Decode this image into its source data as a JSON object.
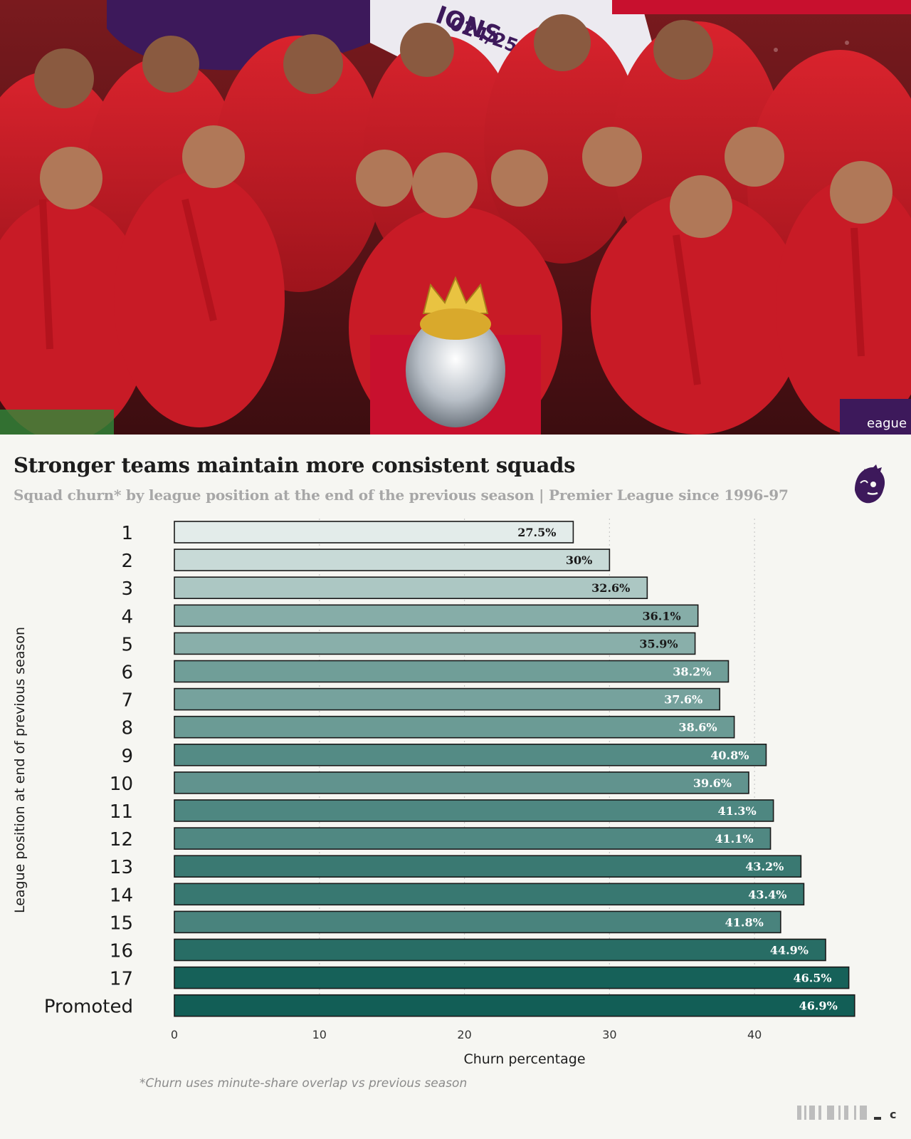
{
  "photo": {
    "banner_text_1": "IONS",
    "banner_text_2": "024/25",
    "board_text": "eague"
  },
  "title": "Stronger teams maintain more consistent squads",
  "subtitle": "Squad churn* by league position at the end of the previous season | Premier League since 1996-97",
  "footnote": "*Churn uses minute-share overlap vs previous season",
  "logo_icon": "premier-league-lion-icon",
  "colors": {
    "bar_light": "#e3ecea",
    "bar_dark": "#125e56",
    "background": "#f6f6f2",
    "logo_purple": "#3d195b"
  },
  "chart_data": {
    "type": "bar",
    "orientation": "horizontal",
    "categories": [
      "1",
      "2",
      "3",
      "4",
      "5",
      "6",
      "7",
      "8",
      "9",
      "10",
      "11",
      "12",
      "13",
      "14",
      "15",
      "16",
      "17",
      "Promoted"
    ],
    "values": [
      27.5,
      30,
      32.6,
      36.1,
      35.9,
      38.2,
      37.6,
      38.6,
      40.8,
      39.6,
      41.3,
      41.1,
      43.2,
      43.4,
      41.8,
      44.9,
      46.5,
      46.9
    ],
    "value_labels": [
      "27.5%",
      "30%",
      "32.6%",
      "36.1%",
      "35.9%",
      "38.2%",
      "37.6%",
      "38.6%",
      "40.8%",
      "39.6%",
      "41.3%",
      "41.1%",
      "43.2%",
      "43.4%",
      "41.8%",
      "44.9%",
      "46.5%",
      "46.9%"
    ],
    "xlabel": "Churn percentage",
    "ylabel": "League position at end of previous season",
    "xlim": [
      0,
      47.5
    ],
    "xticks": [
      0,
      10,
      20,
      30,
      40
    ],
    "grid": "vertical dotted",
    "legend": "none"
  }
}
